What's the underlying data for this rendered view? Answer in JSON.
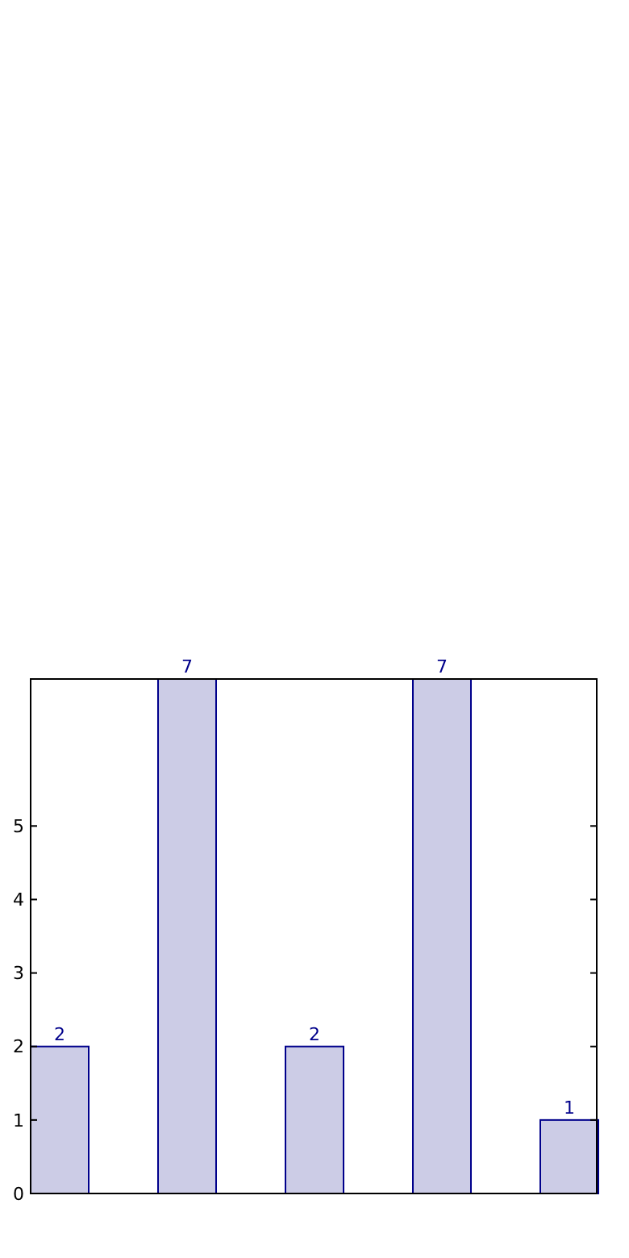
{
  "chart_data": {
    "type": "bar",
    "categories": [
      null,
      null,
      null,
      null,
      null
    ],
    "values": [
      2,
      7,
      2,
      7,
      1
    ],
    "color": "#cccce6",
    "ylim": [
      0,
      7
    ],
    "yticks": [
      0,
      1,
      2,
      3,
      4,
      5
    ],
    "data_labels": true,
    "tick_labels": "y"
  }
}
